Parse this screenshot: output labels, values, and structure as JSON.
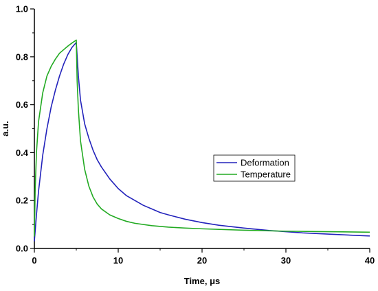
{
  "chart_data": {
    "type": "line",
    "xlabel": "Time, μs",
    "ylabel": "a.u.",
    "xlim": [
      0,
      40
    ],
    "ylim": [
      0,
      1.0
    ],
    "x_ticks": [
      0,
      10,
      20,
      30,
      40
    ],
    "y_ticks": [
      0.0,
      0.2,
      0.4,
      0.6,
      0.8,
      1.0
    ],
    "x_tick_labels": [
      "0",
      "10",
      "20",
      "30",
      "40"
    ],
    "y_tick_labels": [
      "0.0",
      "0.2",
      "0.4",
      "0.6",
      "0.8",
      "1.0"
    ],
    "grid": false,
    "legend_position": "center-right",
    "series": [
      {
        "name": "Deformation",
        "color": "#2222bb",
        "x": [
          0,
          0.25,
          0.5,
          1,
          1.5,
          2,
          2.5,
          3,
          3.5,
          4,
          4.5,
          5,
          5.25,
          5.5,
          6,
          6.5,
          7,
          7.5,
          8,
          9,
          10,
          11,
          12,
          13,
          14,
          15,
          16,
          18,
          20,
          22,
          25,
          28,
          30,
          32,
          35,
          38,
          40
        ],
        "y": [
          0.03,
          0.14,
          0.24,
          0.39,
          0.5,
          0.59,
          0.66,
          0.72,
          0.77,
          0.81,
          0.84,
          0.86,
          0.72,
          0.62,
          0.52,
          0.46,
          0.41,
          0.37,
          0.34,
          0.29,
          0.25,
          0.22,
          0.2,
          0.18,
          0.165,
          0.15,
          0.14,
          0.122,
          0.108,
          0.097,
          0.085,
          0.075,
          0.07,
          0.065,
          0.06,
          0.055,
          0.052
        ]
      },
      {
        "name": "Temperature",
        "color": "#22aa22",
        "x": [
          0,
          0.1,
          0.25,
          0.5,
          1,
          1.5,
          2,
          2.5,
          3,
          3.5,
          4,
          4.5,
          5,
          5.1,
          5.25,
          5.5,
          6,
          6.5,
          7,
          7.5,
          8,
          9,
          10,
          11,
          12,
          14,
          16,
          18,
          20,
          25,
          30,
          35,
          40
        ],
        "y": [
          0.05,
          0.25,
          0.4,
          0.53,
          0.65,
          0.72,
          0.76,
          0.79,
          0.815,
          0.83,
          0.845,
          0.858,
          0.87,
          0.7,
          0.58,
          0.45,
          0.33,
          0.26,
          0.215,
          0.185,
          0.165,
          0.14,
          0.125,
          0.113,
          0.105,
          0.095,
          0.089,
          0.085,
          0.082,
          0.076,
          0.072,
          0.07,
          0.068
        ]
      }
    ]
  }
}
